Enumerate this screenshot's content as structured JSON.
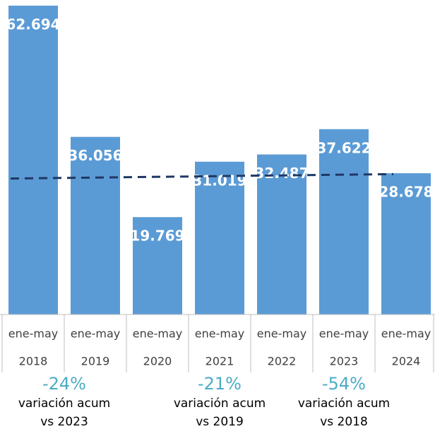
{
  "chart_data": {
    "type": "bar",
    "categories": [
      [
        "ene-may",
        "2018"
      ],
      [
        "ene-may",
        "2019"
      ],
      [
        "ene-may",
        "2020"
      ],
      [
        "ene-may",
        "2021"
      ],
      [
        "ene-may",
        "2022"
      ],
      [
        "ene-may",
        "2023"
      ],
      [
        "ene-may",
        "2024"
      ]
    ],
    "values": [
      62.694,
      36.056,
      19.769,
      31.019,
      32.487,
      37.622,
      28.678
    ],
    "color": "#5b9bd5",
    "trend": {
      "values": [
        27.6,
        28.5
      ],
      "color": "#1f3864"
    },
    "annotations": [
      {
        "value": "-24%",
        "text": "variación acum",
        "ref": "vs 2023",
        "at": 0.5
      },
      {
        "value": "-21%",
        "text": "variación acum",
        "ref": "vs 2019",
        "at": 3
      },
      {
        "value": "-54%",
        "text": "variación acum",
        "ref": "vs 2018",
        "at": 5
      }
    ],
    "annotation_color": "#4bacc6"
  }
}
